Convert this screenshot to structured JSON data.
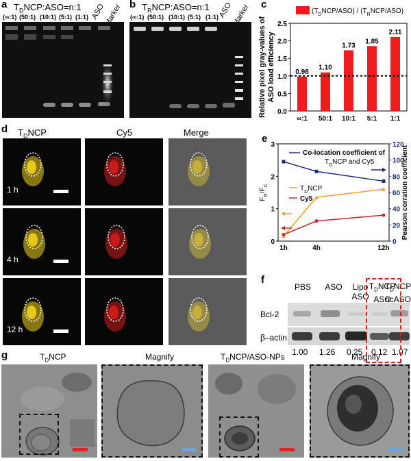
{
  "panels": {
    "a": {
      "letter": "a",
      "title_pre": "T",
      "title_sub": "D",
      "title_post": "NCP:ASO=n:1",
      "lanes": [
        "(∞:1)",
        "(50:1)",
        "(10:1)",
        "(5:1)",
        "(1:1)"
      ],
      "aso_label": "ASO",
      "marker_label": "Marker"
    },
    "b": {
      "letter": "b",
      "title_pre": "T",
      "title_sub": "R",
      "title_post": "NCP:ASO=n:1",
      "lanes": [
        "(∞:1)",
        "(50:1)",
        "(10:1)",
        "(5:1)",
        "(1:1)"
      ],
      "aso_label": "ASO",
      "marker_label": "Marker"
    },
    "c": {
      "letter": "c"
    },
    "d": {
      "letter": "d",
      "col_titles": {
        "tdncp_pre": "T",
        "tdncp_sub": "D",
        "tdncp_post": "NCP",
        "cy5": "Cy5",
        "merge": "Merge"
      },
      "rows": [
        "1 h",
        "4 h",
        "12 h"
      ]
    },
    "e": {
      "letter": "e"
    },
    "f": {
      "letter": "f",
      "lanes": [
        {
          "line1": "PBS",
          "line2": ""
        },
        {
          "line1": "ASO",
          "line2": ""
        },
        {
          "line1": "Lipo",
          "line2": "ASO"
        },
        {
          "line1_pre": "T",
          "line1_sub": "D",
          "line1_post": "NCP",
          "line2": "ASO"
        },
        {
          "line1_pre": "T",
          "line1_sub": "D",
          "line1_post": "NCP",
          "line2": "ncASO"
        }
      ],
      "bands": [
        "Bcl-2",
        "β–actin"
      ],
      "values": [
        "1.00",
        "1.26",
        "0.25",
        "0.12",
        "1.07"
      ],
      "highlight_color": "#d0201a"
    },
    "g": {
      "letter": "g",
      "left_title_pre": "T",
      "left_title_sub": "D",
      "left_title_post": "NCP",
      "right_title_pre": "T",
      "right_title_sub": "D",
      "right_title_post": "NCP/ASO-NPs",
      "magnify": "Magnify",
      "scale_red": "#e0241c",
      "scale_blue": "#6fa3dc"
    }
  },
  "chart_data": [
    {
      "id": "c",
      "type": "bar",
      "ylabel_line1": "Relative pixel gray-values of",
      "ylabel_line2": "ASO load efficiency",
      "legend_parts": [
        "(T",
        "D",
        "NCP/ASO) / (T",
        "R",
        "NCP/ASO)"
      ],
      "legend_placement": "top",
      "categories": [
        "∞:1",
        "50:1",
        "10:1",
        "5:1",
        "1:1"
      ],
      "values": [
        0.98,
        1.1,
        1.73,
        1.85,
        2.11
      ],
      "value_labels": [
        "0.98",
        "1.10",
        "1.73",
        "1.85",
        "2.11"
      ],
      "ylim": [
        0,
        2.5
      ],
      "yticks": [
        "0.0",
        "0.5",
        "1.0",
        "1.5",
        "2.0",
        "2.5"
      ],
      "reference_line": 1.0,
      "bar_color": "#ee1c1c"
    },
    {
      "id": "e",
      "type": "line",
      "categories": [
        "1h",
        "4h",
        "12h"
      ],
      "left_ylabel_parts": [
        "F",
        "N",
        "/F",
        "C"
      ],
      "right_ylabel": "Pearson corration coefficient",
      "left_ylim": [
        0,
        3
      ],
      "left_yticks": [
        "0",
        "1",
        "2",
        "3"
      ],
      "right_ylim": [
        0,
        120
      ],
      "right_yticks": [
        "0",
        "20",
        "40",
        "60",
        "80",
        "100",
        "120"
      ],
      "series": [
        {
          "name_parts": [
            "Co-location coefficient of",
            "T",
            "D",
            "NCP and Cy5"
          ],
          "axis": "right",
          "color": "#1f2a7a",
          "marker": "square",
          "values": [
            98,
            86,
            74
          ]
        },
        {
          "name_parts": [
            "T",
            "D",
            "NCP"
          ],
          "axis": "left",
          "color": "#f0a030",
          "marker": "triangle",
          "values": [
            0.15,
            1.35,
            1.6
          ]
        },
        {
          "name_parts": [
            "Cy5"
          ],
          "axis": "left",
          "color": "#c0282a",
          "marker": "circle",
          "values": [
            0.2,
            0.62,
            0.8
          ]
        }
      ]
    }
  ]
}
